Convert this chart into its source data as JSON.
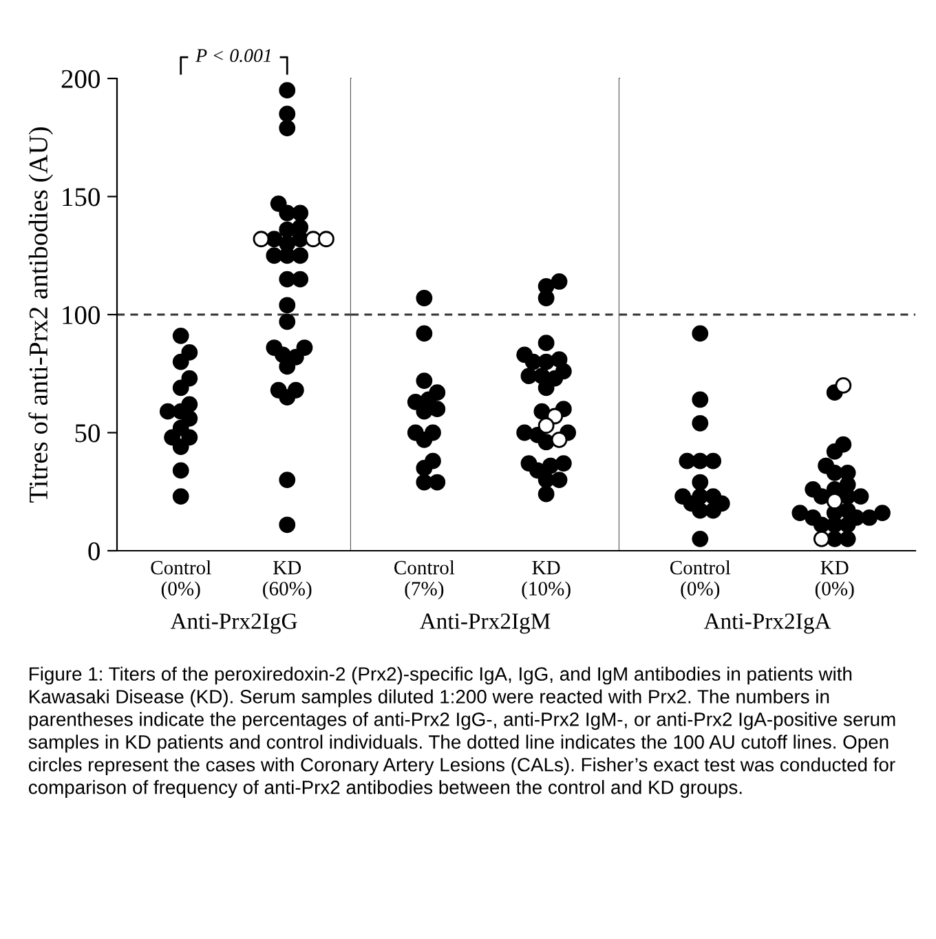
{
  "chart_data": [
    {
      "type": "scatter",
      "categories": [
        "Control\n(0%)",
        "KD\n(60%)"
      ],
      "xlabel": "Anti-Prx2IgG",
      "ylabel": "Titres of anti-Prx2 antibodies (AU)",
      "ylim": [
        0,
        200
      ],
      "yticks": [
        0,
        50,
        100,
        150,
        200
      ],
      "marker": "circle",
      "grid": false,
      "ref_lines": [
        {
          "axis": "y",
          "value": 100,
          "line_style": "dashed"
        }
      ],
      "annotations": [
        "P < 0.001",
        "Figure 1: Titers of the peroxiredoxin-2 (Prx2)-specific IgA, IgG, and IgM antibodies in patients with Kawasaki Disease (KD). Serum samples diluted 1:200 were reacted with Prx2. The numbers in parentheses indicate the percentages of anti-Prx2 IgG-, anti-Prx2 IgM-, or anti-Prx2 IgA-positive serum samples in KD patients and control individuals. The dotted line indicates the 100 AU cutoff lines. Open circles represent the cases with Coronary Artery Lesions (CALs). Fisher’s exact test was conducted for comparison of frequency of anti-Prx2 antibodies between the control and KD groups."
      ],
      "series": [
        {
          "color": "#000000",
          "x": [
            "Control\n(0%)",
            "Control\n(0%)",
            "Control\n(0%)",
            "Control\n(0%)",
            "Control\n(0%)",
            "Control\n(0%)",
            "Control\n(0%)",
            "Control\n(0%)",
            "Control\n(0%)",
            "Control\n(0%)",
            "Control\n(0%)",
            "Control\n(0%)",
            "Control\n(0%)",
            "Control\n(0%)",
            "Control\n(0%)",
            "KD\n(60%)",
            "KD\n(60%)",
            "KD\n(60%)",
            "KD\n(60%)",
            "KD\n(60%)",
            "KD\n(60%)",
            "KD\n(60%)",
            "KD\n(60%)",
            "KD\n(60%)",
            "KD\n(60%)",
            "KD\n(60%)",
            "KD\n(60%)",
            "KD\n(60%)",
            "KD\n(60%)",
            "KD\n(60%)",
            "KD\n(60%)",
            "KD\n(60%)",
            "KD\n(60%)",
            "KD\n(60%)",
            "KD\n(60%)",
            "KD\n(60%)",
            "KD\n(60%)",
            "KD\n(60%)",
            "KD\n(60%)",
            "KD\n(60%)",
            "KD\n(60%)",
            "KD\n(60%)",
            "KD\n(60%)"
          ],
          "values": [
            91,
            84,
            80,
            73,
            69,
            62,
            59,
            59,
            56,
            52,
            48,
            48,
            44,
            34,
            23,
            195,
            185,
            179,
            147,
            143,
            143,
            136,
            132,
            132,
            125,
            125,
            125,
            115,
            115,
            104,
            97,
            86,
            86,
            83,
            82,
            78,
            68,
            68,
            65,
            30,
            11,
            137,
            130
          ]
        },
        {
          "color": "#ffffff",
          "x": [
            "KD\n(60%)",
            "KD\n(60%)",
            "KD\n(60%)"
          ],
          "values": [
            132,
            132,
            132
          ]
        }
      ]
    },
    {
      "type": "scatter",
      "categories": [
        "Control\n(7%)",
        "KD\n(10%)"
      ],
      "xlabel": "Anti-Prx2IgM",
      "ylim": [
        0,
        200
      ],
      "yticks": [
        0,
        50,
        100,
        150,
        200
      ],
      "tick_labels": "x",
      "marker": "circle",
      "grid": false,
      "ref_lines": [
        {
          "axis": "y",
          "value": 100,
          "line_style": "dashed"
        }
      ],
      "series": [
        {
          "color": "#000000",
          "x": [
            "Control\n(7%)",
            "Control\n(7%)",
            "Control\n(7%)",
            "Control\n(7%)",
            "Control\n(7%)",
            "Control\n(7%)",
            "Control\n(7%)",
            "Control\n(7%)",
            "Control\n(7%)",
            "Control\n(7%)",
            "Control\n(7%)",
            "Control\n(7%)",
            "Control\n(7%)",
            "Control\n(7%)",
            "Control\n(7%)",
            "KD\n(10%)",
            "KD\n(10%)",
            "KD\n(10%)",
            "KD\n(10%)",
            "KD\n(10%)",
            "KD\n(10%)",
            "KD\n(10%)",
            "KD\n(10%)",
            "KD\n(10%)",
            "KD\n(10%)",
            "KD\n(10%)",
            "KD\n(10%)",
            "KD\n(10%)",
            "KD\n(10%)",
            "KD\n(10%)",
            "KD\n(10%)",
            "KD\n(10%)",
            "KD\n(10%)",
            "KD\n(10%)",
            "KD\n(10%)",
            "KD\n(10%)",
            "KD\n(10%)",
            "KD\n(10%)",
            "KD\n(10%)",
            "KD\n(10%)",
            "KD\n(10%)"
          ],
          "values": [
            107,
            92,
            72,
            67,
            64,
            63,
            60,
            59,
            50,
            50,
            47,
            38,
            35,
            29,
            29,
            114,
            112,
            107,
            88,
            83,
            81,
            80,
            80,
            76,
            74,
            74,
            73,
            69,
            60,
            59,
            50,
            50,
            49,
            46,
            37,
            37,
            36,
            34,
            30,
            30,
            24
          ]
        },
        {
          "color": "#ffffff",
          "x": [
            "KD\n(10%)",
            "KD\n(10%)",
            "KD\n(10%)"
          ],
          "values": [
            57,
            53,
            47
          ]
        }
      ]
    },
    {
      "type": "scatter",
      "categories": [
        "Control\n(0%)",
        "KD\n(0%)"
      ],
      "xlabel": "Anti-Prx2IgA",
      "ylim": [
        0,
        200
      ],
      "yticks": [
        0,
        50,
        100,
        150,
        200
      ],
      "tick_labels": "x",
      "marker": "circle",
      "grid": false,
      "ref_lines": [
        {
          "axis": "y",
          "value": 100,
          "line_style": "dashed"
        }
      ],
      "series": [
        {
          "color": "#000000",
          "x": [
            "Control\n(0%)",
            "Control\n(0%)",
            "Control\n(0%)",
            "Control\n(0%)",
            "Control\n(0%)",
            "Control\n(0%)",
            "Control\n(0%)",
            "Control\n(0%)",
            "Control\n(0%)",
            "Control\n(0%)",
            "Control\n(0%)",
            "Control\n(0%)",
            "Control\n(0%)",
            "Control\n(0%)",
            "Control\n(0%)",
            "KD\n(0%)",
            "KD\n(0%)",
            "KD\n(0%)",
            "KD\n(0%)",
            "KD\n(0%)",
            "KD\n(0%)",
            "KD\n(0%)",
            "KD\n(0%)",
            "KD\n(0%)",
            "KD\n(0%)",
            "KD\n(0%)",
            "KD\n(0%)",
            "KD\n(0%)",
            "KD\n(0%)",
            "KD\n(0%)",
            "KD\n(0%)",
            "KD\n(0%)",
            "KD\n(0%)",
            "KD\n(0%)",
            "KD\n(0%)",
            "KD\n(0%)",
            "KD\n(0%)",
            "KD\n(0%)",
            "KD\n(0%)"
          ],
          "values": [
            92,
            64,
            54,
            38,
            38,
            38,
            29,
            23,
            23,
            23,
            20,
            20,
            17,
            17,
            5,
            67,
            45,
            42,
            36,
            33,
            33,
            28,
            26,
            26,
            23,
            23,
            23,
            17,
            16,
            16,
            16,
            14,
            14,
            14,
            11,
            11,
            11,
            5,
            5
          ]
        },
        {
          "color": "#ffffff",
          "x": [
            "KD\n(0%)",
            "KD\n(0%)",
            "KD\n(0%)"
          ],
          "values": [
            70,
            21,
            5
          ]
        }
      ]
    }
  ]
}
